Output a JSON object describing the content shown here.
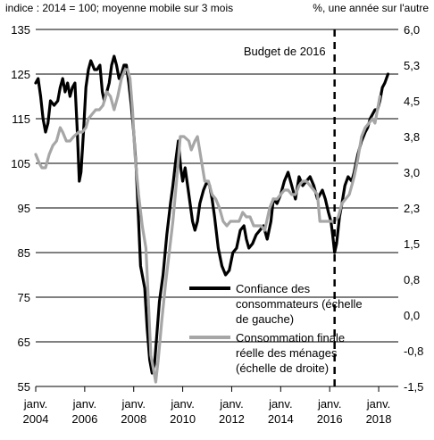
{
  "chart_data": {
    "type": "line",
    "left_axis_title": "indice : 2014 = 100; moyenne mobile sur 3 mois",
    "right_axis_title": "%, une année sur l'autre",
    "y_left": {
      "min": 55,
      "max": 135,
      "ticks": [
        "135",
        "125",
        "115",
        "105",
        "95",
        "85",
        "75",
        "65",
        "55"
      ]
    },
    "y_right": {
      "ticks": [
        "6,0",
        "5,3",
        "4,5",
        "3,8",
        "3,0",
        "2,3",
        "1,5",
        "0,8",
        "0,0",
        "-0,8",
        "-1,5"
      ]
    },
    "x_range": [
      2004.0,
      2018.8
    ],
    "x_ticks": [
      {
        "x": 2004,
        "line1": "janv.",
        "line2": "2004"
      },
      {
        "x": 2006,
        "line1": "janv.",
        "line2": "2006"
      },
      {
        "x": 2008,
        "line1": "janv.",
        "line2": "2008"
      },
      {
        "x": 2010,
        "line1": "janv.",
        "line2": "2010"
      },
      {
        "x": 2012,
        "line1": "janv.",
        "line2": "2012"
      },
      {
        "x": 2014,
        "line1": "janv.",
        "line2": "2014"
      },
      {
        "x": 2016,
        "line1": "janv.",
        "line2": "2016"
      },
      {
        "x": 2018,
        "line1": "janv.",
        "line2": "2018"
      }
    ],
    "grid": "horizontal",
    "annotation": {
      "label": "Budget de 2016",
      "x": 2016.2
    },
    "legend_position": "bottom-center",
    "series": [
      {
        "name": "Confiance des consommateurs (échelle de gauche)",
        "color": "#000000",
        "axis": "left",
        "points": [
          [
            2004.0,
            123
          ],
          [
            2004.1,
            124
          ],
          [
            2004.2,
            120
          ],
          [
            2004.3,
            115
          ],
          [
            2004.4,
            112
          ],
          [
            2004.5,
            114
          ],
          [
            2004.6,
            119
          ],
          [
            2004.75,
            118
          ],
          [
            2004.9,
            119
          ],
          [
            2005.0,
            122
          ],
          [
            2005.1,
            124
          ],
          [
            2005.2,
            121
          ],
          [
            2005.3,
            123
          ],
          [
            2005.4,
            120
          ],
          [
            2005.5,
            122
          ],
          [
            2005.6,
            123
          ],
          [
            2005.7,
            112
          ],
          [
            2005.78,
            101
          ],
          [
            2005.85,
            103
          ],
          [
            2005.95,
            112
          ],
          [
            2006.05,
            122
          ],
          [
            2006.15,
            126
          ],
          [
            2006.25,
            128
          ],
          [
            2006.4,
            126
          ],
          [
            2006.5,
            126
          ],
          [
            2006.62,
            127
          ],
          [
            2006.72,
            121
          ],
          [
            2006.8,
            119
          ],
          [
            2006.9,
            121
          ],
          [
            2007.0,
            123
          ],
          [
            2007.1,
            127
          ],
          [
            2007.2,
            129
          ],
          [
            2007.3,
            127
          ],
          [
            2007.4,
            124
          ],
          [
            2007.5,
            125
          ],
          [
            2007.6,
            127
          ],
          [
            2007.7,
            127
          ],
          [
            2007.8,
            123
          ],
          [
            2007.9,
            118
          ],
          [
            2008.0,
            112
          ],
          [
            2008.1,
            104
          ],
          [
            2008.2,
            92
          ],
          [
            2008.28,
            82
          ],
          [
            2008.35,
            80
          ],
          [
            2008.45,
            77
          ],
          [
            2008.55,
            68
          ],
          [
            2008.65,
            61
          ],
          [
            2008.75,
            58
          ],
          [
            2008.85,
            60
          ],
          [
            2008.95,
            67
          ],
          [
            2009.05,
            74
          ],
          [
            2009.2,
            80
          ],
          [
            2009.35,
            89
          ],
          [
            2009.5,
            96
          ],
          [
            2009.6,
            100
          ],
          [
            2009.7,
            105
          ],
          [
            2009.82,
            110
          ],
          [
            2009.92,
            104
          ],
          [
            2010.0,
            101
          ],
          [
            2010.1,
            104
          ],
          [
            2010.25,
            98
          ],
          [
            2010.4,
            92
          ],
          [
            2010.5,
            90
          ],
          [
            2010.6,
            92
          ],
          [
            2010.7,
            96
          ],
          [
            2010.85,
            99
          ],
          [
            2011.0,
            101
          ],
          [
            2011.1,
            100
          ],
          [
            2011.2,
            97
          ],
          [
            2011.3,
            93
          ],
          [
            2011.45,
            86
          ],
          [
            2011.6,
            82
          ],
          [
            2011.75,
            80
          ],
          [
            2011.9,
            81
          ],
          [
            2012.05,
            85
          ],
          [
            2012.2,
            86
          ],
          [
            2012.35,
            90
          ],
          [
            2012.5,
            91
          ],
          [
            2012.6,
            88
          ],
          [
            2012.7,
            86
          ],
          [
            2012.85,
            87
          ],
          [
            2013.0,
            89
          ],
          [
            2013.15,
            90
          ],
          [
            2013.3,
            91
          ],
          [
            2013.45,
            88
          ],
          [
            2013.6,
            92
          ],
          [
            2013.7,
            97
          ],
          [
            2013.85,
            96
          ],
          [
            2014.0,
            98
          ],
          [
            2014.15,
            101
          ],
          [
            2014.3,
            103
          ],
          [
            2014.45,
            100
          ],
          [
            2014.6,
            97
          ],
          [
            2014.75,
            102
          ],
          [
            2014.9,
            100
          ],
          [
            2015.05,
            101
          ],
          [
            2015.2,
            102
          ],
          [
            2015.35,
            100
          ],
          [
            2015.5,
            97
          ],
          [
            2015.6,
            98
          ],
          [
            2015.7,
            99
          ],
          [
            2015.82,
            97
          ],
          [
            2015.95,
            94
          ],
          [
            2016.05,
            92
          ],
          [
            2016.12,
            89
          ],
          [
            2016.2,
            85
          ],
          [
            2016.28,
            87
          ],
          [
            2016.4,
            93
          ],
          [
            2016.5,
            96
          ],
          [
            2016.62,
            100
          ],
          [
            2016.75,
            102
          ],
          [
            2016.9,
            101
          ],
          [
            2017.0,
            103
          ],
          [
            2017.15,
            107
          ],
          [
            2017.3,
            110
          ],
          [
            2017.45,
            112
          ],
          [
            2017.55,
            113
          ],
          [
            2017.65,
            115
          ],
          [
            2017.75,
            116
          ],
          [
            2017.85,
            117
          ],
          [
            2017.95,
            117
          ],
          [
            2018.05,
            119
          ],
          [
            2018.15,
            122
          ],
          [
            2018.25,
            123
          ],
          [
            2018.38,
            125
          ]
        ]
      },
      {
        "name": "Consommation finale réelle des ménages (échelle de droite)",
        "color": "#a6a6a6",
        "axis": "right",
        "points": [
          [
            2004.0,
            107
          ],
          [
            2004.15,
            105
          ],
          [
            2004.25,
            104
          ],
          [
            2004.4,
            104
          ],
          [
            2004.55,
            107
          ],
          [
            2004.7,
            109
          ],
          [
            2004.85,
            110
          ],
          [
            2005.0,
            113
          ],
          [
            2005.1,
            112
          ],
          [
            2005.25,
            110
          ],
          [
            2005.4,
            110
          ],
          [
            2005.55,
            111
          ],
          [
            2005.75,
            112
          ],
          [
            2005.9,
            112
          ],
          [
            2006.05,
            113
          ],
          [
            2006.15,
            115
          ],
          [
            2006.3,
            116
          ],
          [
            2006.45,
            117
          ],
          [
            2006.6,
            117
          ],
          [
            2006.75,
            118
          ],
          [
            2006.9,
            121
          ],
          [
            2007.05,
            120
          ],
          [
            2007.2,
            117
          ],
          [
            2007.35,
            120
          ],
          [
            2007.5,
            124
          ],
          [
            2007.65,
            126
          ],
          [
            2007.75,
            126
          ],
          [
            2007.85,
            124
          ],
          [
            2007.95,
            117
          ],
          [
            2008.05,
            107
          ],
          [
            2008.2,
            98
          ],
          [
            2008.35,
            91
          ],
          [
            2008.5,
            86
          ],
          [
            2008.6,
            74
          ],
          [
            2008.7,
            62
          ],
          [
            2008.8,
            59
          ],
          [
            2008.9,
            56
          ],
          [
            2009.0,
            61
          ],
          [
            2009.15,
            70
          ],
          [
            2009.3,
            78
          ],
          [
            2009.45,
            85
          ],
          [
            2009.6,
            92
          ],
          [
            2009.75,
            101
          ],
          [
            2009.9,
            111
          ],
          [
            2010.05,
            111
          ],
          [
            2010.25,
            110
          ],
          [
            2010.35,
            108
          ],
          [
            2010.5,
            110
          ],
          [
            2010.6,
            111
          ],
          [
            2010.75,
            106
          ],
          [
            2010.9,
            101
          ],
          [
            2011.05,
            101
          ],
          [
            2011.2,
            98
          ],
          [
            2011.35,
            97
          ],
          [
            2011.5,
            95
          ],
          [
            2011.65,
            92
          ],
          [
            2011.8,
            91
          ],
          [
            2011.95,
            92
          ],
          [
            2012.1,
            92
          ],
          [
            2012.3,
            92
          ],
          [
            2012.45,
            94
          ],
          [
            2012.6,
            93
          ],
          [
            2012.75,
            93
          ],
          [
            2012.9,
            91
          ],
          [
            2013.05,
            91
          ],
          [
            2013.2,
            91
          ],
          [
            2013.35,
            90
          ],
          [
            2013.55,
            95
          ],
          [
            2013.7,
            97
          ],
          [
            2013.85,
            97
          ],
          [
            2014.0,
            98
          ],
          [
            2014.15,
            99
          ],
          [
            2014.3,
            99
          ],
          [
            2014.45,
            98
          ],
          [
            2014.6,
            98
          ],
          [
            2014.75,
            100
          ],
          [
            2014.9,
            101
          ],
          [
            2015.05,
            101
          ],
          [
            2015.2,
            100
          ],
          [
            2015.35,
            99
          ],
          [
            2015.5,
            98
          ],
          [
            2015.6,
            92
          ],
          [
            2015.75,
            92
          ],
          [
            2015.9,
            92
          ],
          [
            2016.05,
            92
          ],
          [
            2016.2,
            92
          ],
          [
            2016.35,
            93
          ],
          [
            2016.5,
            96
          ],
          [
            2016.65,
            97
          ],
          [
            2016.8,
            98
          ],
          [
            2016.9,
            100
          ],
          [
            2017.0,
            102
          ],
          [
            2017.15,
            106
          ],
          [
            2017.3,
            111
          ],
          [
            2017.45,
            113
          ],
          [
            2017.6,
            114
          ],
          [
            2017.75,
            115
          ],
          [
            2017.85,
            114
          ],
          [
            2017.95,
            117
          ],
          [
            2018.05,
            120
          ]
        ]
      }
    ]
  }
}
